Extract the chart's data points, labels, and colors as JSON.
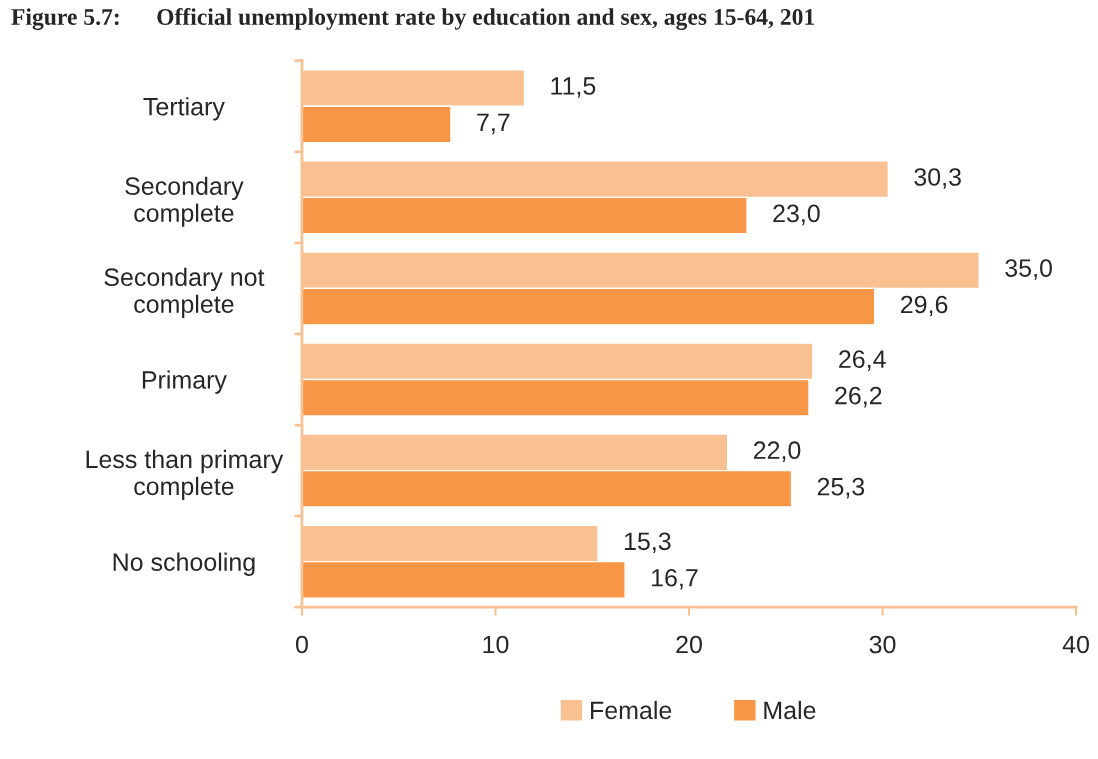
{
  "chart_data": {
    "type": "bar",
    "orientation": "horizontal",
    "title": "Figure 5.7:      Official unemployment rate by education and sex, ages 15-64, 201",
    "categories": [
      "Tertiary",
      "Secondary\ncomplete",
      "Secondary not\ncomplete",
      "Primary",
      "Less than primary\ncomplete",
      "No schooling"
    ],
    "series": [
      {
        "name": "Female",
        "color": "#f9c191",
        "values": [
          11.5,
          30.3,
          35.0,
          26.4,
          22.0,
          15.3
        ],
        "value_labels": [
          "11,5",
          "30,3",
          "35,0",
          "26,4",
          "22,0",
          "15,3"
        ]
      },
      {
        "name": "Male",
        "color": "#f79646",
        "values": [
          7.7,
          23.0,
          29.6,
          26.2,
          25.3,
          16.7
        ],
        "value_labels": [
          "7,7",
          "23,0",
          "29,6",
          "26,2",
          "25,3",
          "16,7"
        ]
      }
    ],
    "xlim": [
      0,
      40
    ],
    "xticks": [
      0,
      10,
      20,
      30,
      40
    ],
    "grid": false,
    "legend": "bottom"
  }
}
